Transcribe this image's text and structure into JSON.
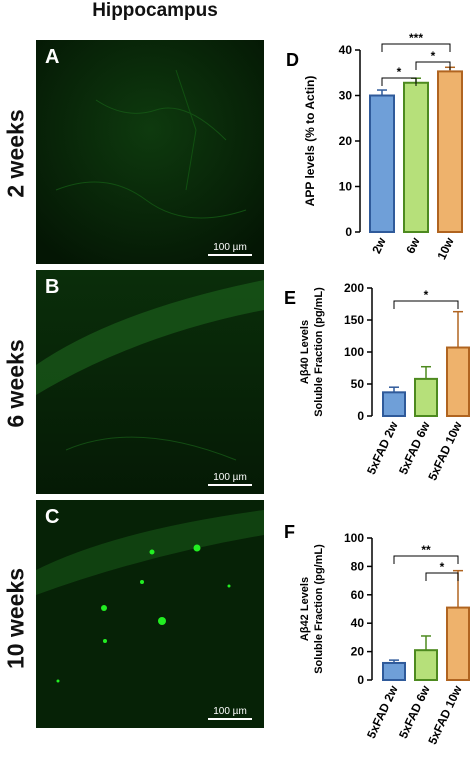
{
  "figure": {
    "title": "Hippocampus",
    "rows": [
      {
        "letter": "A",
        "label": "2 weeks",
        "scale": "100 µm"
      },
      {
        "letter": "B",
        "label": "6 weeks",
        "scale": "100 µm"
      },
      {
        "letter": "C",
        "label": "10 weeks",
        "scale": "100 µm"
      }
    ]
  },
  "colors": {
    "blue": "#6f9fd8",
    "green": "#b6e07a",
    "orange": "#eeb26c",
    "blue_edge": "#2f5a9a",
    "green_edge": "#4d8a1f",
    "orange_edge": "#b06420",
    "fluor": "#22ee22"
  },
  "chart_data": [
    {
      "panel": "D",
      "type": "bar",
      "categories": [
        "2w",
        "6w",
        "10w"
      ],
      "values": [
        30,
        32.8,
        35.3
      ],
      "errors": [
        1.2,
        1.0,
        0.9
      ],
      "colors": [
        "#6f9fd8",
        "#b6e07a",
        "#eeb26c"
      ],
      "ylabel": "APP levels (% to Actin)",
      "ylim": [
        0,
        40
      ],
      "yticks": [
        0,
        10,
        20,
        30,
        40
      ],
      "significance": [
        {
          "from": 0,
          "to": 2,
          "label": "***"
        },
        {
          "from": 0,
          "to": 1,
          "label": "*"
        },
        {
          "from": 1,
          "to": 2,
          "label": "*"
        }
      ]
    },
    {
      "panel": "E",
      "type": "bar",
      "categories": [
        "5xFAD 2w",
        "5xFAD 6w",
        "5xFAD 10w"
      ],
      "values": [
        37,
        58,
        107
      ],
      "errors": [
        8,
        19,
        56
      ],
      "colors": [
        "#6f9fd8",
        "#b6e07a",
        "#eeb26c"
      ],
      "ylabel_main": "Aβ40 Levels",
      "ylabel_sub": "Soluble Fraction (pg/mL)",
      "ylim": [
        0,
        200
      ],
      "yticks": [
        0,
        50,
        100,
        150,
        200
      ],
      "significance": [
        {
          "from": 0,
          "to": 2,
          "label": "*"
        }
      ]
    },
    {
      "panel": "F",
      "type": "bar",
      "categories": [
        "5xFAD 2w",
        "5xFAD 6w",
        "5xFAD 10w"
      ],
      "values": [
        12,
        21,
        51
      ],
      "errors": [
        2,
        10,
        26
      ],
      "colors": [
        "#6f9fd8",
        "#b6e07a",
        "#eeb26c"
      ],
      "ylabel_main": "Aβ42 Levels",
      "ylabel_sub": "Soluble Fraction (pg/mL)",
      "ylim": [
        0,
        100
      ],
      "yticks": [
        0,
        20,
        40,
        60,
        80,
        100
      ],
      "significance": [
        {
          "from": 0,
          "to": 2,
          "label": "**"
        },
        {
          "from": 1,
          "to": 2,
          "label": "*"
        }
      ]
    }
  ]
}
